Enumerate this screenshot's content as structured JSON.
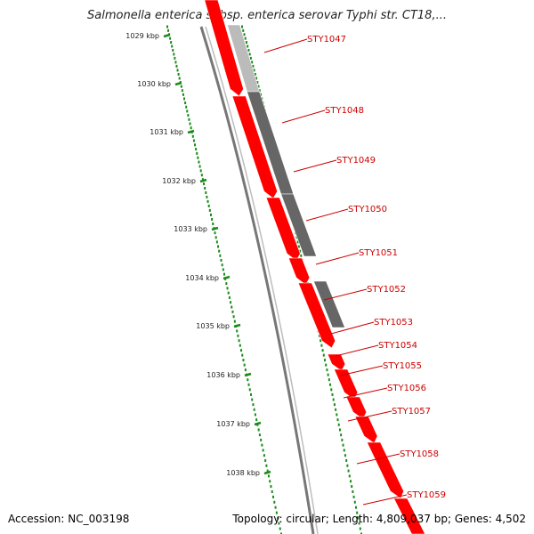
{
  "title": "Salmonella enterica subsp. enterica serovar Typhi str. CT18,...",
  "footer": {
    "accession": "Accession: NC_003198",
    "topology": "Topology: circular; Length: 4,809,037 bp; Genes: 4,502"
  },
  "scale_ticks": [
    "1029 kbp",
    "1030 kbp",
    "1031 kbp",
    "1032 kbp",
    "1033 kbp",
    "1034 kbp",
    "1035 kbp",
    "1036 kbp",
    "1037 kbp",
    "1038 kbp"
  ],
  "genes": [
    "STY1047",
    "STY1048",
    "STY1049",
    "STY1050",
    "STY1051",
    "STY1052",
    "STY1053",
    "STY1054",
    "STY1055",
    "STY1056",
    "STY1057",
    "STY1058",
    "STY1059"
  ],
  "colors": {
    "forward_cds": "#ff0000",
    "reverse_feature": "#666666",
    "reverse_feature_light": "#bbbbbb",
    "backbone": "#777777",
    "ruler": "#1a8a1a",
    "label": "#cc0000"
  }
}
